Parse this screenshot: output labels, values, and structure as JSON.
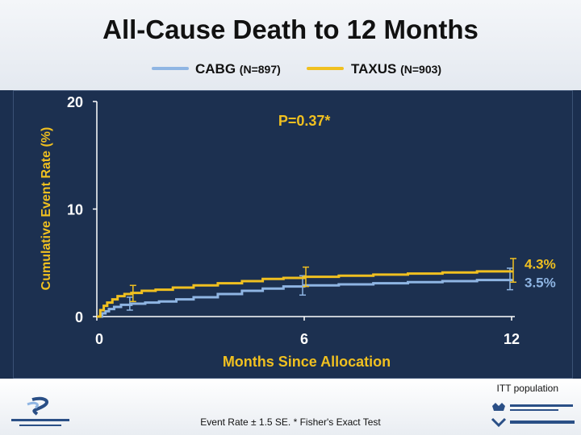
{
  "slide": {
    "title": "All-Cause Death to 12 Months",
    "itt_note": "ITT population",
    "footnote": "Event Rate ± 1.5 SE. * Fisher's Exact Test"
  },
  "colors": {
    "cabg": "#8fb5e3",
    "taxus": "#f0c020",
    "background": "#1c3050",
    "axis": "#ffffff",
    "annotation": "#f0c020"
  },
  "chart_data": {
    "type": "line",
    "title": "All-Cause Death to 12 Months",
    "xlabel": "Months Since Allocation",
    "ylabel": "Cumulative Event Rate (%)",
    "xlim": [
      0,
      12
    ],
    "ylim": [
      0,
      20
    ],
    "x_ticks": [
      0,
      6,
      12
    ],
    "x_tick_labels": [
      "0",
      "6",
      "12"
    ],
    "y_ticks": [
      0,
      10,
      20
    ],
    "y_tick_labels": [
      "0",
      "10",
      "20"
    ],
    "grid": false,
    "legend_position": "top",
    "series": [
      {
        "name": "CABG",
        "n_label": "(N=897)",
        "color": "#8fb5e3",
        "x": [
          0,
          0.15,
          0.25,
          0.35,
          0.5,
          0.7,
          1.0,
          1.4,
          1.8,
          2.3,
          2.8,
          3.5,
          4.2,
          4.8,
          5.4,
          6.0,
          7.0,
          8.0,
          9.0,
          10.0,
          11.0,
          12.0
        ],
        "y": [
          0,
          0.3,
          0.5,
          0.7,
          0.9,
          1.1,
          1.2,
          1.3,
          1.4,
          1.6,
          1.8,
          2.1,
          2.4,
          2.6,
          2.8,
          2.9,
          3.0,
          3.1,
          3.2,
          3.3,
          3.4,
          3.5
        ],
        "end_label": "3.5%",
        "error_bars": [
          {
            "x": 1.0,
            "low": 0.6,
            "high": 1.8
          },
          {
            "x": 6.0,
            "low": 2.0,
            "high": 3.8
          },
          {
            "x": 12.0,
            "low": 2.5,
            "high": 4.5
          }
        ]
      },
      {
        "name": "TAXUS",
        "n_label": "(N=903)",
        "color": "#f0c020",
        "x": [
          0,
          0.1,
          0.2,
          0.3,
          0.45,
          0.6,
          0.8,
          1.0,
          1.3,
          1.7,
          2.2,
          2.8,
          3.5,
          4.2,
          4.8,
          5.4,
          6.0,
          7.0,
          8.0,
          9.0,
          10.0,
          11.0,
          12.0
        ],
        "y": [
          0,
          0.6,
          1.0,
          1.3,
          1.6,
          1.9,
          2.1,
          2.2,
          2.4,
          2.5,
          2.7,
          2.9,
          3.1,
          3.3,
          3.5,
          3.6,
          3.7,
          3.8,
          3.9,
          4.0,
          4.1,
          4.2,
          4.3
        ],
        "end_label": "4.3%",
        "error_bars": [
          {
            "x": 1.0,
            "low": 1.4,
            "high": 2.9
          },
          {
            "x": 6.0,
            "low": 2.8,
            "high": 4.6
          },
          {
            "x": 12.0,
            "low": 3.2,
            "high": 5.4
          }
        ]
      }
    ],
    "annotations": [
      {
        "text": "P=0.37*",
        "x": 5.0,
        "y": 18.2
      }
    ]
  }
}
